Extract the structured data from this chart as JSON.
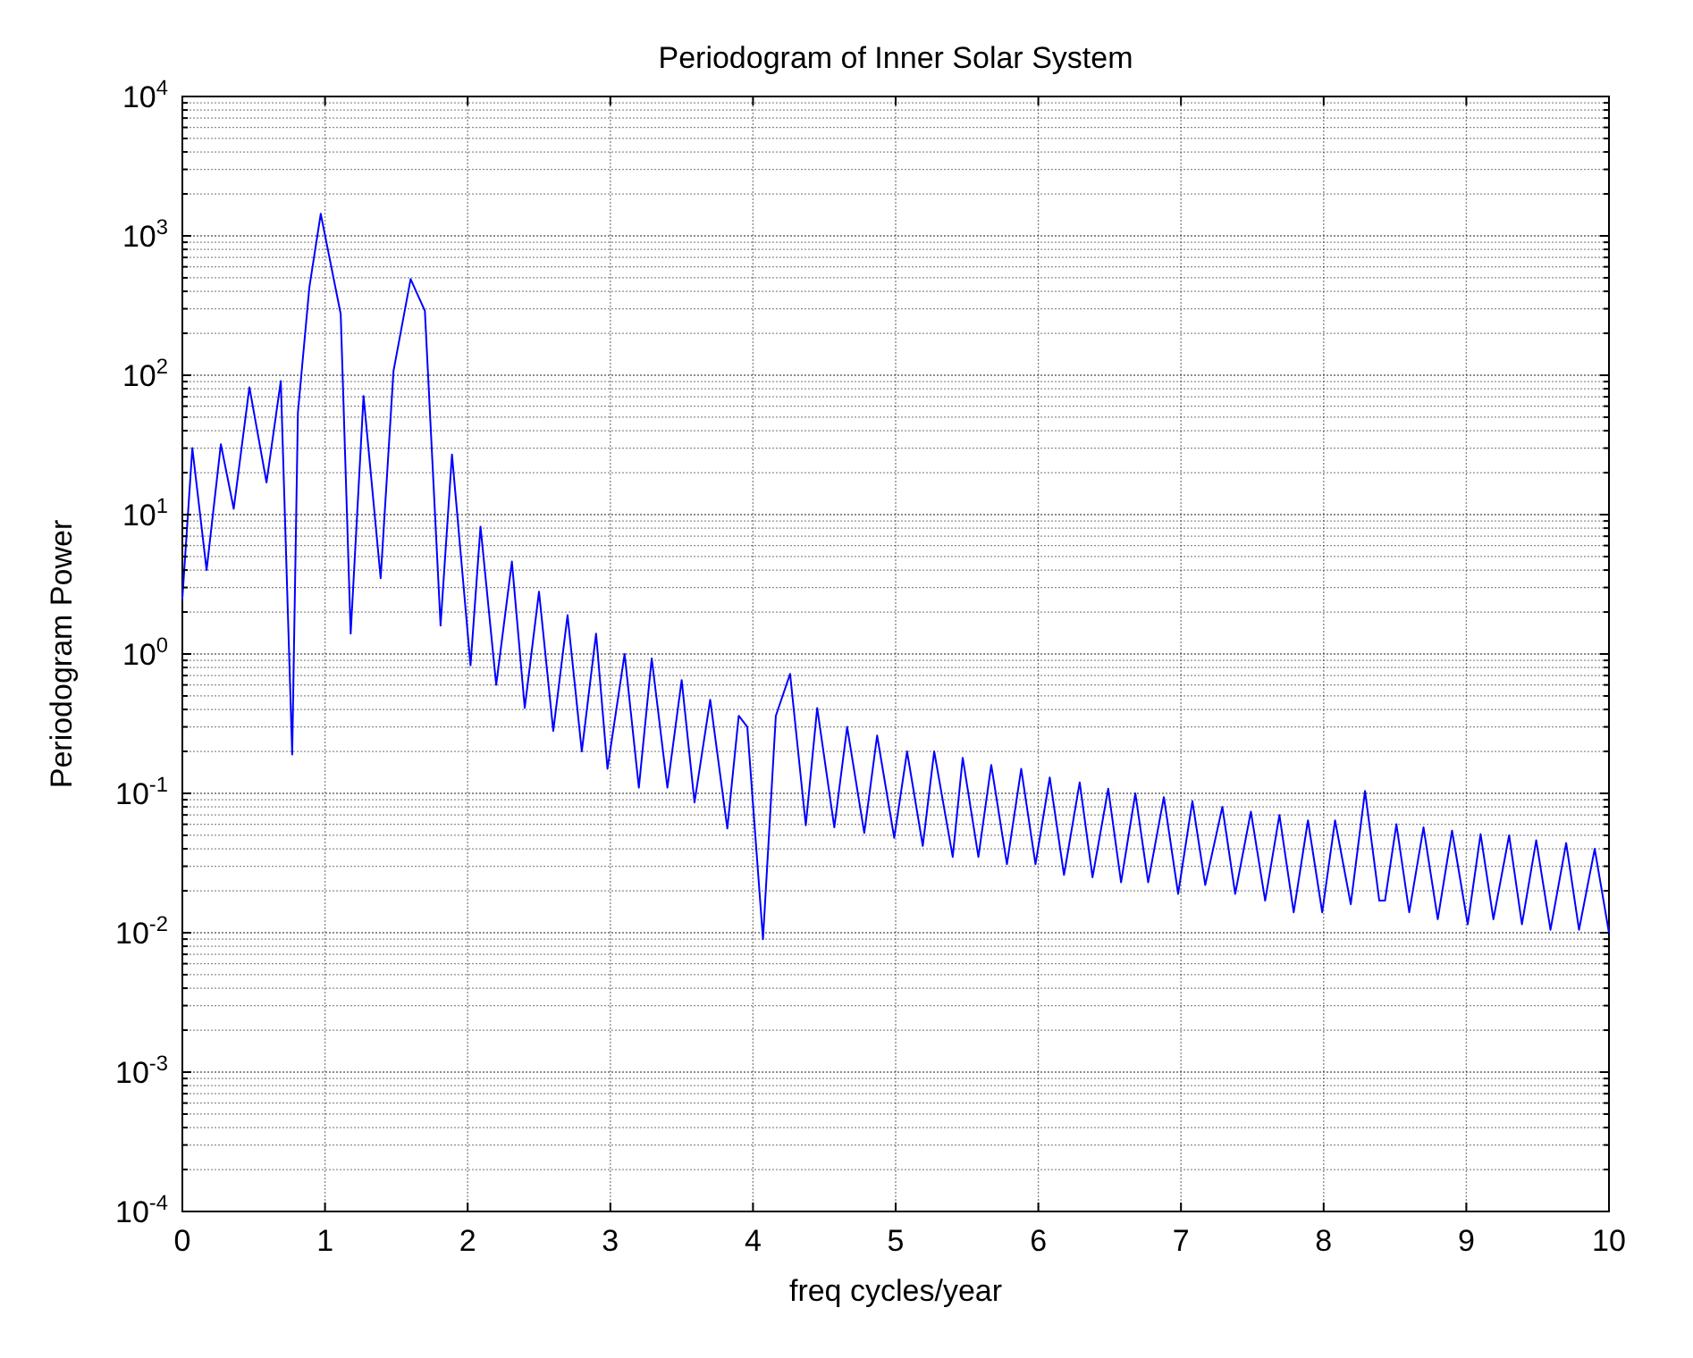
{
  "chart_data": {
    "type": "line",
    "title": "Periodogram of Inner Solar System",
    "xlabel": "freq cycles/year",
    "ylabel": "Periodogram Power",
    "log": "y",
    "grid": true,
    "marker": "none",
    "line_style": "solid",
    "xlim": [
      0,
      10
    ],
    "xticks": [
      0,
      1,
      2,
      3,
      4,
      5,
      6,
      7,
      8,
      9,
      10
    ],
    "ylim": [
      0.0001,
      10000
    ],
    "yticks": [
      {
        "value": 0.0001,
        "label": "10$^{-4}$"
      },
      {
        "value": 0.001,
        "label": "10$^{-3}$"
      },
      {
        "value": 0.01,
        "label": "10$^{-2}$"
      },
      {
        "value": 0.1,
        "label": "10$^{-1}$"
      },
      {
        "value": 1,
        "label": "10$^{0}$"
      },
      {
        "value": 10,
        "label": "10$^{1}$"
      },
      {
        "value": 100,
        "label": "10$^{2}$"
      },
      {
        "value": 1000,
        "label": "10$^{3}$"
      },
      {
        "value": 10000,
        "label": "10$^{4}$"
      }
    ],
    "series": [
      {
        "color": "#0000ff",
        "x": [
          0,
          0.07,
          0.17,
          0.27,
          0.36,
          0.47,
          0.59,
          0.69,
          0.77,
          0.81,
          0.89,
          0.97,
          1.11,
          1.18,
          1.27,
          1.39,
          1.48,
          1.6,
          1.7,
          1.81,
          1.89,
          2.02,
          2.09,
          2.2,
          2.31,
          2.4,
          2.5,
          2.6,
          2.7,
          2.8,
          2.9,
          2.98,
          3.1,
          3.2,
          3.29,
          3.4,
          3.5,
          3.59,
          3.7,
          3.82,
          3.9,
          3.96,
          4.07,
          4.16,
          4.26,
          4.37,
          4.45,
          4.57,
          4.66,
          4.78,
          4.87,
          4.99,
          5.08,
          5.19,
          5.27,
          5.4,
          5.47,
          5.58,
          5.67,
          5.78,
          5.88,
          5.98,
          6.08,
          6.18,
          6.29,
          6.38,
          6.49,
          6.58,
          6.68,
          6.77,
          6.88,
          6.98,
          7.08,
          7.17,
          7.29,
          7.38,
          7.49,
          7.59,
          7.69,
          7.79,
          7.89,
          7.99,
          8.08,
          8.19,
          8.29,
          8.39,
          8.43,
          8.51,
          8.6,
          8.7,
          8.8,
          8.9,
          9.01,
          9.1,
          9.19,
          9.3,
          9.39,
          9.49,
          9.59,
          9.7,
          9.79,
          9.9,
          10
        ],
        "values": [
          2.5,
          30,
          4,
          32,
          11,
          82,
          17,
          91,
          0.19,
          54,
          425,
          1440,
          275,
          1.4,
          71,
          3.5,
          107,
          490,
          290,
          1.6,
          27,
          0.83,
          8.2,
          0.6,
          4.6,
          0.41,
          2.8,
          0.28,
          1.9,
          0.2,
          1.4,
          0.15,
          1,
          0.11,
          0.93,
          0.11,
          0.65,
          0.086,
          0.47,
          0.056,
          0.36,
          0.3,
          0.009,
          0.36,
          0.72,
          0.059,
          0.41,
          0.057,
          0.3,
          0.052,
          0.26,
          0.048,
          0.2,
          0.042,
          0.2,
          0.035,
          0.18,
          0.035,
          0.16,
          0.031,
          0.15,
          0.031,
          0.13,
          0.026,
          0.12,
          0.025,
          0.108,
          0.023,
          0.1,
          0.023,
          0.094,
          0.019,
          0.088,
          0.022,
          0.08,
          0.019,
          0.074,
          0.017,
          0.07,
          0.014,
          0.064,
          0.014,
          0.064,
          0.016,
          0.104,
          0.017,
          0.017,
          0.06,
          0.014,
          0.057,
          0.0125,
          0.054,
          0.0115,
          0.051,
          0.0125,
          0.05,
          0.0115,
          0.046,
          0.0105,
          0.044,
          0.0105,
          0.04,
          0.01
        ]
      }
    ]
  }
}
